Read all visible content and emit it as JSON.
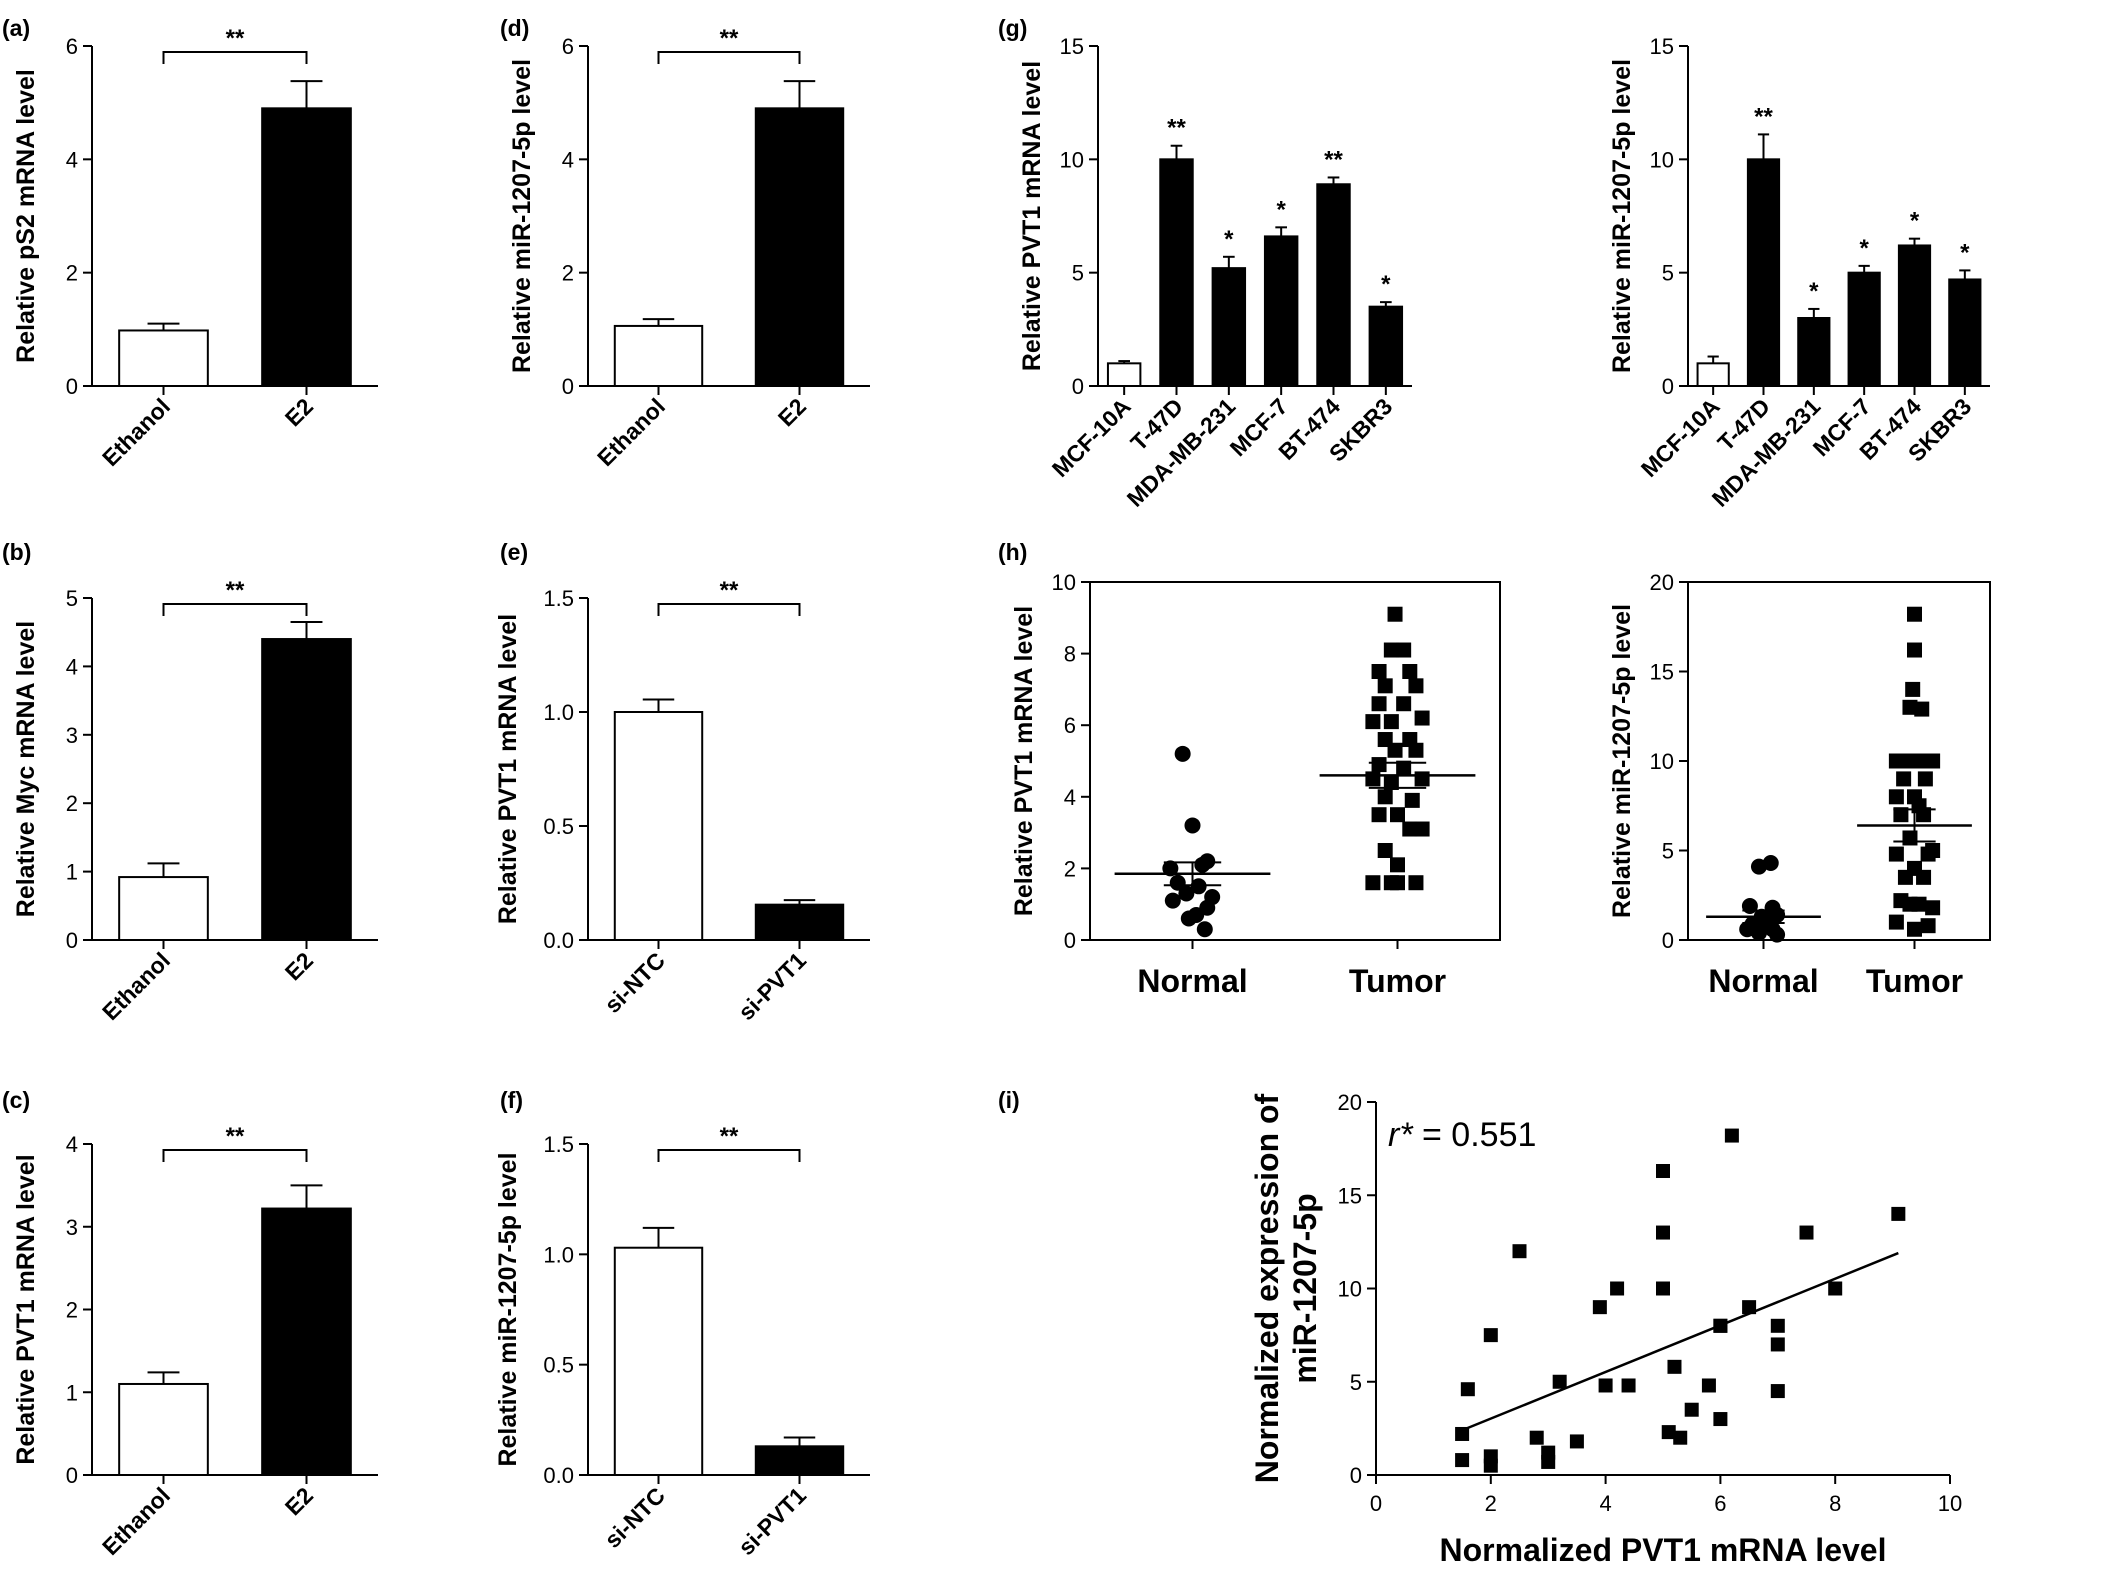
{
  "colors": {
    "ink": "#000000",
    "background": "#ffffff",
    "open_bar": "#ffffff",
    "filled_bar": "#000000"
  },
  "chart_data": [
    {
      "id": "a",
      "type": "bar",
      "panel_label": "(a)",
      "ylabel": "Relative pS2 mRNA level",
      "categories": [
        "Ethanol",
        "E2"
      ],
      "values": [
        0.98,
        4.9
      ],
      "errors": [
        0.12,
        0.48
      ],
      "fills": [
        "open",
        "filled"
      ],
      "ylim": [
        0,
        6
      ],
      "yticks": [
        "0",
        "2",
        "4",
        "6"
      ],
      "brackets": [
        {
          "from": 0,
          "to": 1,
          "label": "**"
        }
      ]
    },
    {
      "id": "b",
      "type": "bar",
      "panel_label": "(b)",
      "ylabel": "Relative Myc mRNA level",
      "categories": [
        "Ethanol",
        "E2"
      ],
      "values": [
        0.92,
        4.4
      ],
      "errors": [
        0.2,
        0.25
      ],
      "fills": [
        "open",
        "filled"
      ],
      "ylim": [
        0,
        5
      ],
      "yticks": [
        "0",
        "1",
        "2",
        "3",
        "4",
        "5"
      ],
      "brackets": [
        {
          "from": 0,
          "to": 1,
          "label": "**"
        }
      ]
    },
    {
      "id": "c",
      "type": "bar",
      "panel_label": "(c)",
      "ylabel": "Relative PVT1 mRNA level",
      "categories": [
        "Ethanol",
        "E2"
      ],
      "values": [
        1.1,
        3.22
      ],
      "errors": [
        0.14,
        0.28
      ],
      "fills": [
        "open",
        "filled"
      ],
      "ylim": [
        0,
        4
      ],
      "yticks": [
        "0",
        "1",
        "2",
        "3",
        "4"
      ],
      "brackets": [
        {
          "from": 0,
          "to": 1,
          "label": "**"
        }
      ]
    },
    {
      "id": "d",
      "type": "bar",
      "panel_label": "(d)",
      "ylabel": "Relative miR-1207-5p level",
      "categories": [
        "Ethanol",
        "E2"
      ],
      "values": [
        1.06,
        4.9
      ],
      "errors": [
        0.12,
        0.48
      ],
      "fills": [
        "open",
        "filled"
      ],
      "ylim": [
        0,
        6
      ],
      "yticks": [
        "0",
        "2",
        "4",
        "6"
      ],
      "brackets": [
        {
          "from": 0,
          "to": 1,
          "label": "**"
        }
      ]
    },
    {
      "id": "e",
      "type": "bar",
      "panel_label": "(e)",
      "ylabel": "Relative PVT1 mRNA level",
      "categories": [
        "si-NTC",
        "si-PVT1"
      ],
      "values": [
        1.0,
        0.155
      ],
      "errors": [
        0.055,
        0.02
      ],
      "fills": [
        "open",
        "filled"
      ],
      "ylim": [
        0,
        1.5
      ],
      "yticks": [
        "0.0",
        "0.5",
        "1.0",
        "1.5"
      ],
      "brackets": [
        {
          "from": 0,
          "to": 1,
          "label": "**"
        }
      ]
    },
    {
      "id": "f",
      "type": "bar",
      "panel_label": "(f)",
      "ylabel": "Relative miR-1207-5p  level",
      "categories": [
        "si-NTC",
        "si-PVT1"
      ],
      "values": [
        1.03,
        0.13
      ],
      "errors": [
        0.09,
        0.04
      ],
      "fills": [
        "open",
        "filled"
      ],
      "ylim": [
        0,
        1.5
      ],
      "yticks": [
        "0.0",
        "0.5",
        "1.0",
        "1.5"
      ],
      "brackets": [
        {
          "from": 0,
          "to": 1,
          "label": "**"
        }
      ]
    },
    {
      "id": "g1",
      "type": "bar",
      "panel_label": "(g)",
      "ylabel": "Relative PVT1  mRNA level",
      "categories": [
        "MCF-10A",
        "T-47D",
        "MDA-MB-231",
        "MCF-7",
        "BT-474",
        "SKBR3"
      ],
      "values": [
        1.0,
        10.0,
        5.2,
        6.6,
        8.9,
        3.5
      ],
      "errors": [
        0.1,
        0.6,
        0.5,
        0.4,
        0.3,
        0.2
      ],
      "fills": [
        "open",
        "filled",
        "filled",
        "filled",
        "filled",
        "filled"
      ],
      "ylim": [
        0,
        15
      ],
      "yticks": [
        "0",
        "5",
        "10",
        "15"
      ],
      "stars": [
        "",
        "**",
        "*",
        "*",
        "**",
        "*"
      ]
    },
    {
      "id": "g2",
      "type": "bar",
      "panel_label": "",
      "ylabel": "Relative miR-1207-5p level",
      "categories": [
        "MCF-10A",
        "T-47D",
        "MDA-MB-231",
        "MCF-7",
        "BT-474",
        "SKBR3"
      ],
      "values": [
        1.0,
        10.0,
        3.0,
        5.0,
        6.2,
        4.7
      ],
      "errors": [
        0.3,
        1.1,
        0.4,
        0.3,
        0.3,
        0.4
      ],
      "fills": [
        "open",
        "filled",
        "filled",
        "filled",
        "filled",
        "filled"
      ],
      "ylim": [
        0,
        15
      ],
      "yticks": [
        "0",
        "5",
        "10",
        "15"
      ],
      "stars": [
        "",
        "**",
        "*",
        "*",
        "*",
        "*"
      ]
    },
    {
      "id": "h1",
      "type": "scatter",
      "panel_label": "(h)",
      "ylabel": "Relative PVT1 mRNA level",
      "categories": [
        "Normal",
        "Tumor"
      ],
      "ylim": [
        0,
        10
      ],
      "yticks": [
        "0",
        "2",
        "4",
        "6",
        "8",
        "10"
      ],
      "groups": [
        {
          "name": "Normal",
          "marker": "circle",
          "mean": 1.85,
          "sem": 0.32,
          "x": [
            -0.08,
            0.0,
            0.12,
            -0.18,
            0.08,
            -0.12,
            0.05,
            0.16,
            -0.05,
            0.12,
            -0.16,
            0.03,
            -0.03,
            0.1
          ],
          "y": [
            5.2,
            3.2,
            2.2,
            2.0,
            2.1,
            1.6,
            1.5,
            1.2,
            1.3,
            0.9,
            1.1,
            0.7,
            0.6,
            0.3
          ]
        },
        {
          "name": "Tumor",
          "marker": "square",
          "mean": 4.6,
          "sem": 0.35,
          "x": [
            -0.02,
            -0.05,
            0.05,
            -0.15,
            0.1,
            -0.1,
            0.15,
            -0.15,
            0.05,
            -0.05,
            0.2,
            -0.2,
            -0.1,
            0.1,
            -0.02,
            0.15,
            -0.15,
            0.05,
            -0.05,
            0.2,
            -0.2,
            -0.1,
            0.12,
            -0.15,
            0.0,
            0.1,
            0.2,
            -0.1,
            0.0,
            -0.2,
            0.0,
            0.15,
            -0.05
          ],
          "y": [
            9.1,
            8.1,
            8.1,
            7.5,
            7.5,
            7.1,
            7.1,
            6.6,
            6.6,
            6.1,
            6.2,
            6.1,
            5.6,
            5.6,
            5.3,
            5.3,
            4.9,
            4.8,
            4.4,
            4.5,
            4.5,
            4.0,
            3.9,
            3.5,
            3.5,
            3.1,
            3.1,
            2.5,
            2.1,
            1.6,
            1.6,
            1.6,
            1.6
          ]
        }
      ]
    },
    {
      "id": "h2",
      "type": "scatter",
      "panel_label": "",
      "ylabel": "Relative miR-1207-5p level",
      "categories": [
        "Normal",
        "Tumor"
      ],
      "ylim": [
        0,
        20
      ],
      "yticks": [
        "0",
        "5",
        "10",
        "15",
        "20"
      ],
      "groups": [
        {
          "name": "Normal",
          "marker": "circle",
          "mean": 1.3,
          "sem": 0.35,
          "x": [
            -0.05,
            0.08,
            -0.15,
            0.1,
            -0.02,
            0.15,
            -0.12,
            0.02,
            -0.18,
            0.1,
            -0.05,
            0.15,
            0.05
          ],
          "y": [
            4.1,
            4.3,
            1.9,
            1.8,
            1.3,
            1.4,
            0.9,
            1.0,
            0.6,
            0.6,
            0.4,
            0.3,
            0.8
          ]
        },
        {
          "name": "Tumor",
          "marker": "square",
          "mean": 6.4,
          "sem": 0.9,
          "x": [
            0.0,
            0.0,
            -0.02,
            -0.05,
            0.08,
            -0.2,
            -0.1,
            0.0,
            0.1,
            0.2,
            -0.12,
            0.12,
            0.0,
            -0.2,
            0.05,
            -0.15,
            0.1,
            -0.05,
            0.2,
            -0.2,
            0.15,
            0.0,
            -0.1,
            0.1,
            -0.15,
            0.05,
            -0.05,
            0.2,
            -0.2,
            0.15,
            0.0
          ],
          "y": [
            18.2,
            16.2,
            14.0,
            13.0,
            12.9,
            10.0,
            10.0,
            10.0,
            10.0,
            10.0,
            9.0,
            9.0,
            8.0,
            8.0,
            7.5,
            7.0,
            7.0,
            5.7,
            5.0,
            4.8,
            4.8,
            4.0,
            3.5,
            3.5,
            2.2,
            2.0,
            2.0,
            1.8,
            1.0,
            0.8,
            0.6
          ]
        }
      ]
    },
    {
      "id": "i",
      "type": "scatter",
      "panel_label": "(i)",
      "xlabel": "Normalized PVT1 mRNA level",
      "ylabel_lines": [
        "Normalized expression of",
        "miR-1207-5p"
      ],
      "xlim": [
        0,
        10
      ],
      "ylim": [
        0,
        20
      ],
      "xticks": [
        "0",
        "2",
        "4",
        "6",
        "8",
        "10"
      ],
      "yticks": [
        "0",
        "5",
        "10",
        "15",
        "20"
      ],
      "annotation": {
        "r_symbol": "r*",
        "r_value": " = 0.551"
      },
      "fit_line": {
        "x": [
          1.5,
          9.1
        ],
        "y": [
          2.4,
          11.9
        ]
      },
      "points": {
        "x": [
          1.5,
          1.5,
          1.6,
          2.0,
          2.0,
          2.0,
          2.5,
          2.8,
          3.0,
          3.0,
          3.2,
          3.5,
          3.9,
          4.0,
          4.2,
          4.4,
          5.0,
          5.0,
          5.0,
          5.1,
          5.2,
          5.3,
          5.5,
          5.8,
          6.0,
          6.0,
          6.0,
          6.2,
          6.5,
          7.0,
          7.0,
          7.0,
          7.5,
          8.0,
          9.1
        ],
        "y": [
          0.8,
          2.2,
          4.6,
          0.5,
          1.0,
          7.5,
          12.0,
          2.0,
          0.7,
          1.2,
          5.0,
          1.8,
          9.0,
          4.8,
          10.0,
          4.8,
          16.3,
          13.0,
          10.0,
          2.3,
          5.8,
          2.0,
          3.5,
          4.8,
          3.0,
          8.0,
          8.0,
          18.2,
          9.0,
          8.0,
          7.0,
          4.5,
          13.0,
          10.0,
          14.0
        ]
      }
    }
  ]
}
